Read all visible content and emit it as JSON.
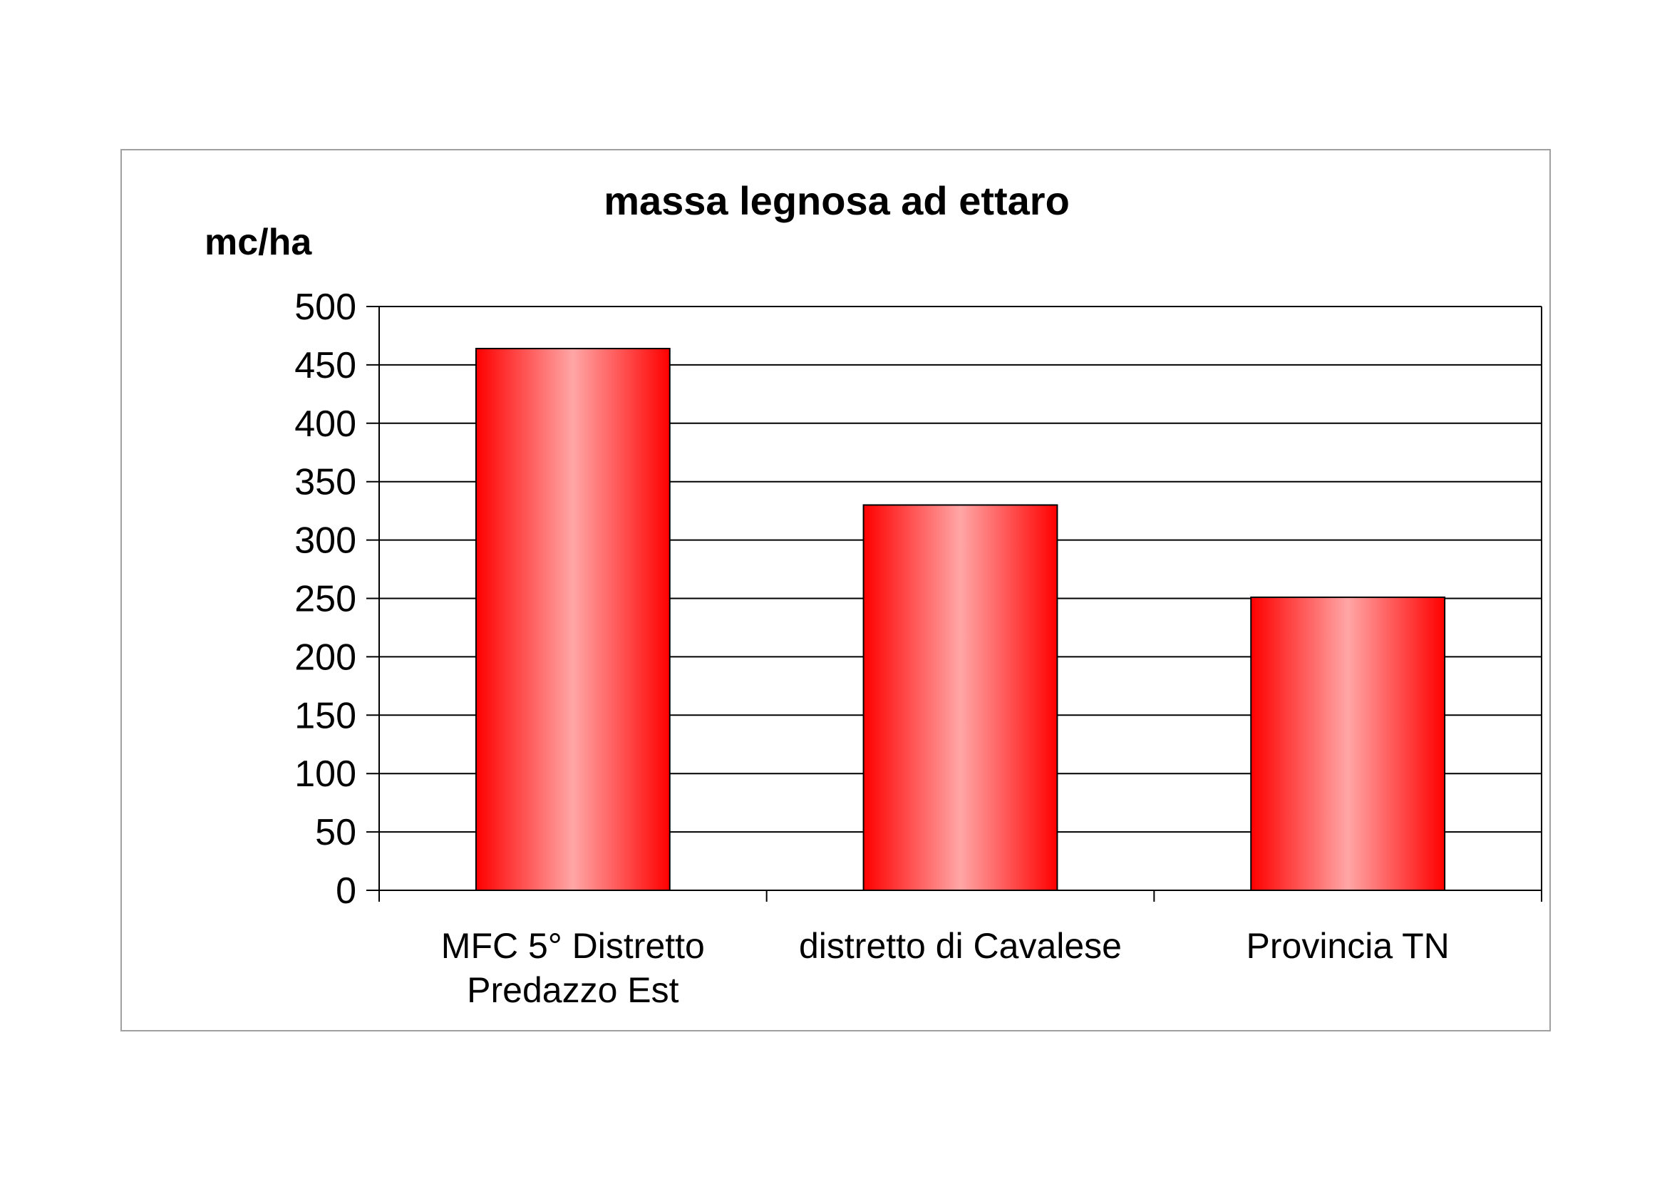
{
  "chart_data": {
    "type": "bar",
    "title": "massa legnosa ad ettaro",
    "ylabel": "mc/ha",
    "xlabel": "",
    "categories": [
      [
        "MFC 5° Distretto",
        "Predazzo Est"
      ],
      [
        "distretto di Cavalese"
      ],
      [
        "Provincia TN"
      ]
    ],
    "values": [
      464,
      330,
      251
    ],
    "ylim": [
      0,
      500
    ],
    "yticks": [
      "0",
      "50",
      "100",
      "150",
      "200",
      "250",
      "300",
      "350",
      "400",
      "450",
      "500"
    ],
    "ytick_values": [
      0,
      50,
      100,
      150,
      200,
      250,
      300,
      350,
      400,
      450,
      500
    ],
    "grid": true,
    "legend": "none",
    "colors": {
      "bar_edge": "#ff0000",
      "bar_mid": "#ffa6a6",
      "bar_outline": "#000000",
      "grid": "#000000",
      "frame": "#a0a0a0"
    }
  }
}
